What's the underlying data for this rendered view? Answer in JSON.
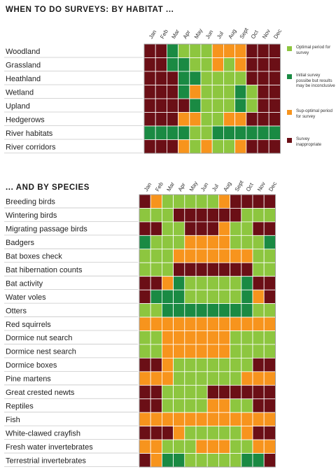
{
  "colors": {
    "optimal": "#8dc63f",
    "initial": "#1a8a43",
    "suboptimal": "#f7941d",
    "inappropriate": "#6b0f16"
  },
  "habitat_heading": "WHEN TO DO SURVEYS: BY HABITAT ...",
  "species_heading": "... AND BY SPECIES",
  "legend": [
    {
      "key": "O",
      "label": "Optimal period for survey"
    },
    {
      "key": "I",
      "label": "Initial survey possibe but results may be inconclusive"
    },
    {
      "key": "S",
      "label": "Sup-optimal period for survey"
    },
    {
      "key": "X",
      "label": "Survey inappropriate"
    }
  ],
  "chart_data": [
    {
      "type": "heatmap",
      "title": "WHEN TO DO SURVEYS: BY HABITAT ...",
      "months": [
        "Jan",
        "Feb",
        "Mar",
        "Apr",
        "May",
        "Jun",
        "Jul",
        "Aug",
        "Sept",
        "Oct",
        "Nov",
        "Dec"
      ],
      "categories": [
        "O",
        "I",
        "S",
        "X"
      ],
      "rows": [
        {
          "label": "Woodland",
          "values": [
            "X",
            "X",
            "I",
            "O",
            "O",
            "O",
            "S",
            "S",
            "S",
            "X",
            "X",
            "X"
          ]
        },
        {
          "label": "Grassland",
          "values": [
            "X",
            "X",
            "I",
            "I",
            "O",
            "O",
            "S",
            "O",
            "S",
            "X",
            "X",
            "X"
          ]
        },
        {
          "label": "Heathland",
          "values": [
            "X",
            "X",
            "X",
            "I",
            "I",
            "O",
            "O",
            "O",
            "O",
            "X",
            "X",
            "X"
          ]
        },
        {
          "label": "Wetland",
          "values": [
            "X",
            "X",
            "X",
            "I",
            "S",
            "O",
            "O",
            "O",
            "I",
            "O",
            "X",
            "X"
          ]
        },
        {
          "label": "Upland",
          "values": [
            "X",
            "X",
            "X",
            "X",
            "I",
            "O",
            "O",
            "O",
            "I",
            "O",
            "X",
            "X"
          ]
        },
        {
          "label": "Hedgerows",
          "values": [
            "X",
            "X",
            "X",
            "S",
            "S",
            "O",
            "O",
            "S",
            "S",
            "X",
            "X",
            "X"
          ]
        },
        {
          "label": "River habitats",
          "values": [
            "I",
            "I",
            "I",
            "I",
            "O",
            "O",
            "I",
            "I",
            "I",
            "I",
            "I",
            "I"
          ]
        },
        {
          "label": "River corridors",
          "values": [
            "X",
            "X",
            "X",
            "S",
            "O",
            "S",
            "O",
            "O",
            "S",
            "X",
            "X",
            "X"
          ]
        }
      ]
    },
    {
      "type": "heatmap",
      "title": "... AND BY SPECIES",
      "months": [
        "Jan",
        "Feb",
        "Mar",
        "Apr",
        "May",
        "Jun",
        "Jul",
        "Aug",
        "Sept",
        "Oct",
        "Nov",
        "Dec"
      ],
      "categories": [
        "O",
        "I",
        "S",
        "X"
      ],
      "rows": [
        {
          "label": "Breeding birds",
          "values": [
            "X",
            "S",
            "O",
            "O",
            "O",
            "O",
            "O",
            "S",
            "X",
            "X",
            "X",
            "X"
          ]
        },
        {
          "label": "Wintering birds",
          "values": [
            "O",
            "O",
            "O",
            "X",
            "X",
            "X",
            "X",
            "X",
            "X",
            "O",
            "O",
            "O"
          ]
        },
        {
          "label": "Migrating passage birds",
          "values": [
            "X",
            "X",
            "O",
            "O",
            "X",
            "X",
            "X",
            "S",
            "O",
            "O",
            "X",
            "X"
          ]
        },
        {
          "label": "Badgers",
          "values": [
            "I",
            "O",
            "O",
            "O",
            "S",
            "S",
            "S",
            "S",
            "O",
            "O",
            "O",
            "I"
          ]
        },
        {
          "label": "Bat boxes check",
          "values": [
            "O",
            "O",
            "O",
            "S",
            "S",
            "S",
            "S",
            "S",
            "S",
            "S",
            "O",
            "O"
          ]
        },
        {
          "label": "Bat hibernation counts",
          "values": [
            "O",
            "O",
            "O",
            "X",
            "X",
            "X",
            "X",
            "X",
            "X",
            "X",
            "O",
            "O"
          ]
        },
        {
          "label": "Bat activity",
          "values": [
            "X",
            "X",
            "S",
            "I",
            "O",
            "O",
            "O",
            "O",
            "O",
            "I",
            "X",
            "X"
          ]
        },
        {
          "label": "Water voles",
          "values": [
            "X",
            "I",
            "I",
            "I",
            "O",
            "O",
            "O",
            "O",
            "O",
            "I",
            "S",
            "X"
          ]
        },
        {
          "label": "Otters",
          "values": [
            "O",
            "O",
            "I",
            "I",
            "I",
            "I",
            "I",
            "I",
            "I",
            "I",
            "O",
            "O"
          ]
        },
        {
          "label": "Red squirrels",
          "values": [
            "S",
            "S",
            "S",
            "S",
            "S",
            "S",
            "S",
            "S",
            "S",
            "S",
            "S",
            "S"
          ]
        },
        {
          "label": "Dormice nut search",
          "values": [
            "O",
            "O",
            "S",
            "S",
            "S",
            "S",
            "S",
            "S",
            "O",
            "O",
            "O",
            "O"
          ]
        },
        {
          "label": "Dormice nest search",
          "values": [
            "O",
            "O",
            "S",
            "S",
            "S",
            "S",
            "S",
            "S",
            "O",
            "O",
            "O",
            "O"
          ]
        },
        {
          "label": "Dormice boxes",
          "values": [
            "X",
            "X",
            "S",
            "O",
            "O",
            "O",
            "O",
            "O",
            "O",
            "O",
            "X",
            "X"
          ]
        },
        {
          "label": "Pine martens",
          "values": [
            "S",
            "S",
            "S",
            "O",
            "O",
            "O",
            "O",
            "O",
            "O",
            "S",
            "S",
            "S"
          ]
        },
        {
          "label": "Great crested newts",
          "values": [
            "X",
            "X",
            "O",
            "O",
            "O",
            "O",
            "X",
            "X",
            "X",
            "X",
            "X",
            "X"
          ]
        },
        {
          "label": "Reptiles",
          "values": [
            "X",
            "X",
            "O",
            "O",
            "O",
            "O",
            "S",
            "S",
            "O",
            "O",
            "X",
            "X"
          ]
        },
        {
          "label": "Fish",
          "values": [
            "S",
            "S",
            "S",
            "S",
            "S",
            "S",
            "S",
            "S",
            "S",
            "S",
            "S",
            "S"
          ]
        },
        {
          "label": "White-clawed crayfish",
          "values": [
            "X",
            "X",
            "X",
            "S",
            "O",
            "O",
            "O",
            "O",
            "O",
            "S",
            "X",
            "X"
          ]
        },
        {
          "label": "Fresh water invertebrates",
          "values": [
            "S",
            "S",
            "O",
            "O",
            "O",
            "S",
            "S",
            "S",
            "O",
            "O",
            "S",
            "S"
          ]
        },
        {
          "label": "Terrestrial invertebrates",
          "values": [
            "X",
            "S",
            "I",
            "I",
            "O",
            "O",
            "O",
            "O",
            "O",
            "I",
            "I",
            "X"
          ]
        }
      ]
    }
  ]
}
